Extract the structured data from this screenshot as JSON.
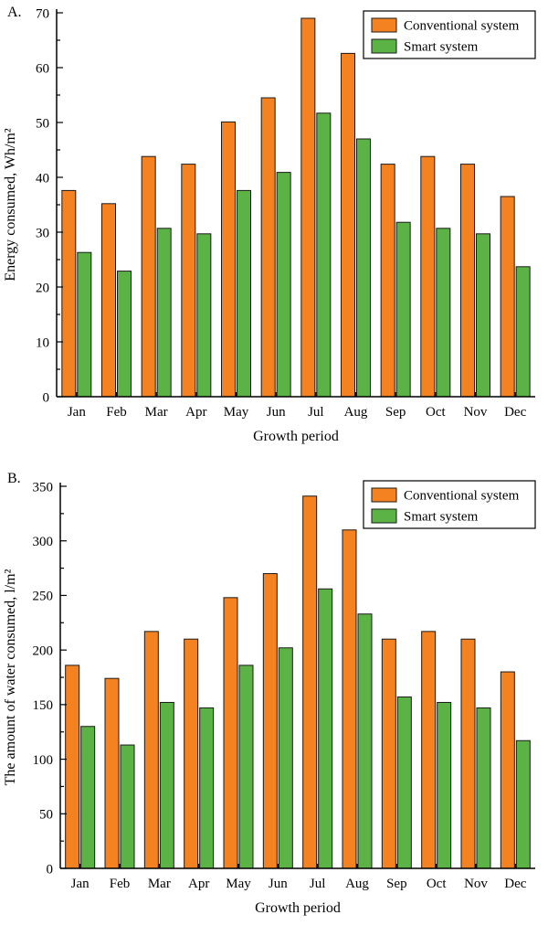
{
  "colors": {
    "conventional": "#F58220",
    "smart": "#5BB245",
    "bar_border": "#1a1a1a",
    "axis": "#000000",
    "background": "#ffffff"
  },
  "chart_data": [
    {
      "type": "bar",
      "panel_label": "A.",
      "title": "",
      "xlabel": "Growth period",
      "ylabel": "Energy consumed, Wh/m²",
      "ylim": [
        0,
        70
      ],
      "ytick_step": 10,
      "ytick_minor": 5,
      "grid": false,
      "legend_position": "top-right",
      "categories": [
        "Jan",
        "Feb",
        "Mar",
        "Apr",
        "May",
        "Jun",
        "Jul",
        "Aug",
        "Sep",
        "Oct",
        "Nov",
        "Dec"
      ],
      "series": [
        {
          "name": "Conventional system",
          "color_key": "conventional",
          "values": [
            37.6,
            35.2,
            43.8,
            42.4,
            50.1,
            54.5,
            69.0,
            62.6,
            42.4,
            43.8,
            42.4,
            36.5
          ]
        },
        {
          "name": "Smart system",
          "color_key": "smart",
          "values": [
            26.3,
            22.9,
            30.7,
            29.7,
            37.6,
            40.9,
            51.7,
            47.0,
            31.8,
            30.7,
            29.7,
            23.7
          ]
        }
      ]
    },
    {
      "type": "bar",
      "panel_label": "B.",
      "title": "",
      "xlabel": "Growth period",
      "ylabel": "The amount of water consumed, l/m²",
      "ylim": [
        0,
        350
      ],
      "ytick_step": 50,
      "ytick_minor": 25,
      "grid": false,
      "legend_position": "top-right",
      "categories": [
        "Jan",
        "Feb",
        "Mar",
        "Apr",
        "May",
        "Jun",
        "Jul",
        "Aug",
        "Sep",
        "Oct",
        "Nov",
        "Dec"
      ],
      "series": [
        {
          "name": "Conventional system",
          "color_key": "conventional",
          "values": [
            186,
            174,
            217,
            210,
            248,
            270,
            341,
            310,
            210,
            217,
            210,
            180
          ]
        },
        {
          "name": "Smart system",
          "color_key": "smart",
          "values": [
            130,
            113,
            152,
            147,
            186,
            202,
            256,
            233,
            157,
            152,
            147,
            117
          ]
        }
      ]
    }
  ]
}
